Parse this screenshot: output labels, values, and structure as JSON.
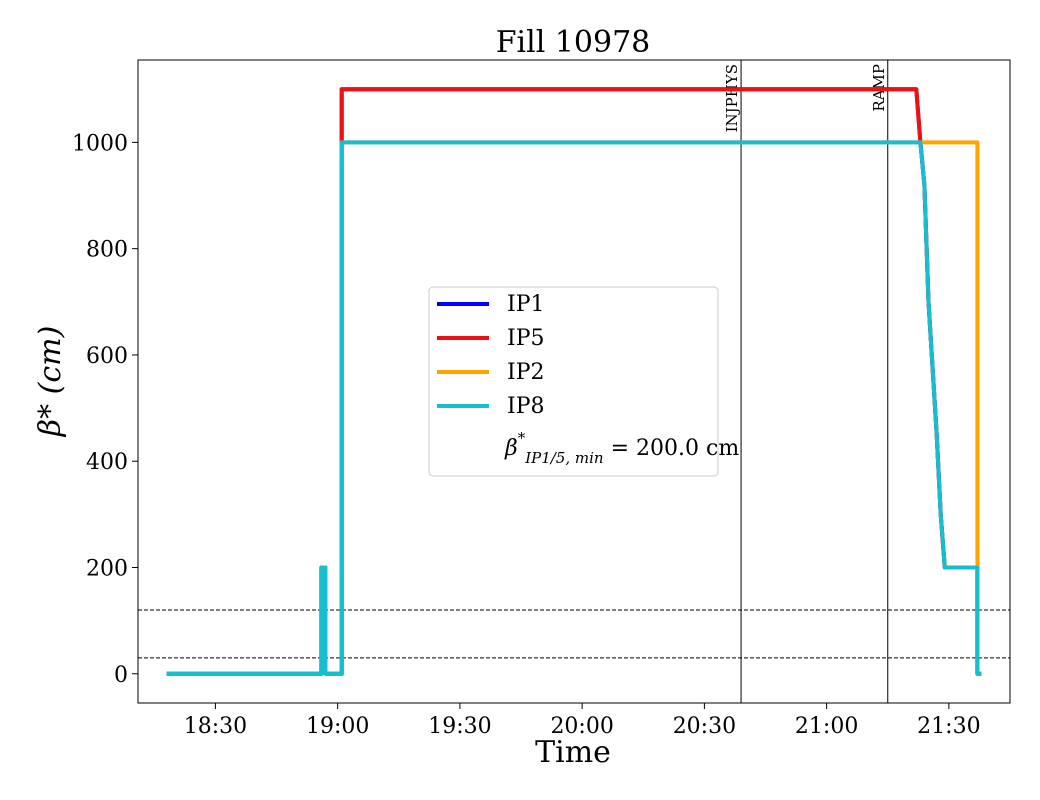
{
  "chart_data": {
    "type": "line",
    "title": "Fill 10978",
    "xlabel": "Time",
    "ylabel": "β* (cm)",
    "x_unit": "time of day (HH:MM)",
    "xlim": [
      "18:11",
      "21:45"
    ],
    "ylim": [
      -55,
      1155
    ],
    "x_ticks": [
      "18:30",
      "19:00",
      "19:30",
      "20:00",
      "20:30",
      "21:00",
      "21:30"
    ],
    "y_ticks": [
      0,
      200,
      400,
      600,
      800,
      1000
    ],
    "grid": false,
    "legend": {
      "placement": "center",
      "entries": [
        {
          "label": "IP1",
          "color": "#0000ff"
        },
        {
          "label": "IP5",
          "color": "#ee1111"
        },
        {
          "label": "IP2",
          "color": "#ffa500"
        },
        {
          "label": "IP8",
          "color": "#17becf"
        }
      ],
      "note": {
        "prefix": "β",
        "sup": "*",
        "sub": "IP1/5, min",
        "suffix": " = 200.0 cm"
      }
    },
    "series": [
      {
        "name": "IP1",
        "color": "#0000ff",
        "points": [
          [
            "18:18",
            0
          ],
          [
            "18:56",
            0
          ],
          [
            "18:56",
            200
          ],
          [
            "18:57",
            200
          ],
          [
            "18:57",
            0
          ],
          [
            "19:01",
            0
          ],
          [
            "19:01",
            1100
          ],
          [
            "21:22",
            1100
          ],
          [
            "21:23",
            1000
          ],
          [
            "21:23",
            1000
          ],
          [
            "21:24",
            920
          ],
          [
            "21:25",
            700
          ],
          [
            "21:27",
            450
          ],
          [
            "21:28",
            300
          ],
          [
            "21:29",
            200
          ],
          [
            "21:37",
            200
          ],
          [
            "21:37",
            0
          ],
          [
            "21:38",
            0
          ]
        ]
      },
      {
        "name": "IP5",
        "color": "#ee1111",
        "points": [
          [
            "18:18",
            0
          ],
          [
            "18:56",
            0
          ],
          [
            "18:56",
            200
          ],
          [
            "18:57",
            200
          ],
          [
            "18:57",
            0
          ],
          [
            "19:01",
            0
          ],
          [
            "19:01",
            1100
          ],
          [
            "21:22",
            1100
          ],
          [
            "21:23",
            1000
          ],
          [
            "21:23",
            1000
          ],
          [
            "21:24",
            920
          ],
          [
            "21:25",
            700
          ],
          [
            "21:27",
            450
          ],
          [
            "21:28",
            300
          ],
          [
            "21:29",
            200
          ],
          [
            "21:37",
            200
          ],
          [
            "21:37",
            0
          ],
          [
            "21:38",
            0
          ]
        ]
      },
      {
        "name": "IP2",
        "color": "#ffa500",
        "points": [
          [
            "18:18",
            0
          ],
          [
            "18:56",
            0
          ],
          [
            "18:56",
            200
          ],
          [
            "18:57",
            200
          ],
          [
            "18:57",
            0
          ],
          [
            "19:01",
            0
          ],
          [
            "19:01",
            1000
          ],
          [
            "21:37",
            1000
          ],
          [
            "21:37",
            0
          ],
          [
            "21:38",
            0
          ]
        ]
      },
      {
        "name": "IP8",
        "color": "#17becf",
        "points": [
          [
            "18:18",
            0
          ],
          [
            "18:56",
            0
          ],
          [
            "18:56",
            200
          ],
          [
            "18:57",
            200
          ],
          [
            "18:57",
            0
          ],
          [
            "19:01",
            0
          ],
          [
            "19:01",
            1000
          ],
          [
            "21:23",
            1000
          ],
          [
            "21:24",
            920
          ],
          [
            "21:25",
            700
          ],
          [
            "21:27",
            450
          ],
          [
            "21:28",
            300
          ],
          [
            "21:29",
            200
          ],
          [
            "21:37",
            200
          ],
          [
            "21:37",
            0
          ],
          [
            "21:38",
            0
          ]
        ]
      }
    ],
    "vlines": [
      {
        "x": "20:39",
        "label": "INJPHYS"
      },
      {
        "x": "21:15",
        "label": "RAMP"
      }
    ],
    "hlines": [
      {
        "y": 30,
        "style": "dashed"
      },
      {
        "y": 120,
        "style": "dashed"
      }
    ]
  }
}
